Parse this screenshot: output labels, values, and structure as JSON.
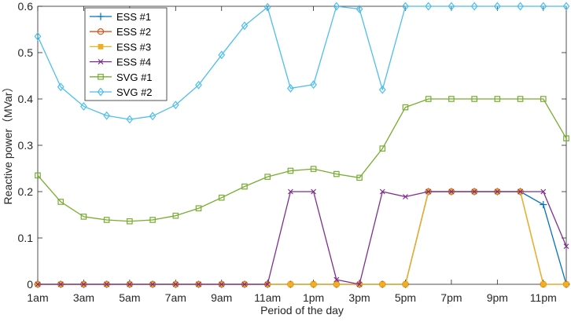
{
  "chart_data": {
    "type": "line",
    "title": "",
    "xlabel": "Period of the day",
    "ylabel": "Reactive power（MVar）",
    "xlim": [
      1,
      24
    ],
    "ylim": [
      0,
      0.6
    ],
    "grid": false,
    "legend_position": "top-left",
    "x": [
      1,
      2,
      3,
      4,
      5,
      6,
      7,
      8,
      9,
      10,
      11,
      12,
      13,
      14,
      15,
      16,
      17,
      18,
      19,
      20,
      21,
      22,
      23,
      24
    ],
    "xticks": [
      1,
      3,
      5,
      7,
      9,
      11,
      13,
      15,
      17,
      19,
      21,
      23
    ],
    "xticklabels": [
      "1am",
      "3am",
      "5am",
      "7am",
      "9am",
      "11am",
      "1pm",
      "3pm",
      "5pm",
      "7pm",
      "9pm",
      "11pm"
    ],
    "yticks": [
      0,
      0.1,
      0.2,
      0.3,
      0.4,
      0.5,
      0.6
    ],
    "yticklabels": [
      "0",
      "0.1",
      "0.2",
      "0.3",
      "0.4",
      "0.5",
      "0.6"
    ],
    "series": [
      {
        "name": "ESS #1",
        "color": "#0072BD",
        "marker": "plus",
        "values": [
          0,
          0,
          0,
          0,
          0,
          0,
          0,
          0,
          0,
          0,
          0,
          0,
          0,
          0,
          0,
          0,
          0,
          0.2,
          0.2,
          0.2,
          0.2,
          0.2,
          0.172,
          0
        ]
      },
      {
        "name": "ESS #2",
        "color": "#D95319",
        "marker": "circle",
        "values": [
          0,
          0,
          0,
          0,
          0,
          0,
          0,
          0,
          0,
          0,
          0,
          0,
          0,
          0,
          0,
          0,
          0,
          0.2,
          0.2,
          0.2,
          0.2,
          0.2,
          0,
          0
        ]
      },
      {
        "name": "ESS #3",
        "color": "#EDB120",
        "marker": "square-filled",
        "values": [
          0,
          0,
          0,
          0,
          0,
          0,
          0,
          0,
          0,
          0,
          0,
          0,
          0,
          0,
          0,
          0,
          0,
          0.2,
          0.2,
          0.2,
          0.2,
          0.2,
          0,
          0
        ]
      },
      {
        "name": "ESS #4",
        "color": "#7E2F8E",
        "marker": "x",
        "values": [
          0,
          0,
          0,
          0,
          0,
          0,
          0,
          0,
          0,
          0,
          0,
          0.2,
          0.2,
          0.01,
          0,
          0.2,
          0.189,
          0.2,
          0.2,
          0.2,
          0.2,
          0.2,
          0.2,
          0.082
        ]
      },
      {
        "name": "SVG #1",
        "color": "#77AC30",
        "marker": "square",
        "values": [
          0.235,
          0.178,
          0.146,
          0.139,
          0.136,
          0.139,
          0.148,
          0.164,
          0.187,
          0.211,
          0.232,
          0.245,
          0.249,
          0.238,
          0.23,
          0.293,
          0.382,
          0.4,
          0.4,
          0.4,
          0.4,
          0.4,
          0.4,
          0.315
        ]
      },
      {
        "name": "SVG #2",
        "color": "#4DBEEE",
        "marker": "diamond",
        "values": [
          0.535,
          0.426,
          0.384,
          0.364,
          0.356,
          0.363,
          0.387,
          0.43,
          0.495,
          0.558,
          0.598,
          0.423,
          0.431,
          0.6,
          0.594,
          0.42,
          0.6,
          0.6,
          0.6,
          0.6,
          0.6,
          0.6,
          0.6,
          0.6
        ]
      }
    ]
  }
}
